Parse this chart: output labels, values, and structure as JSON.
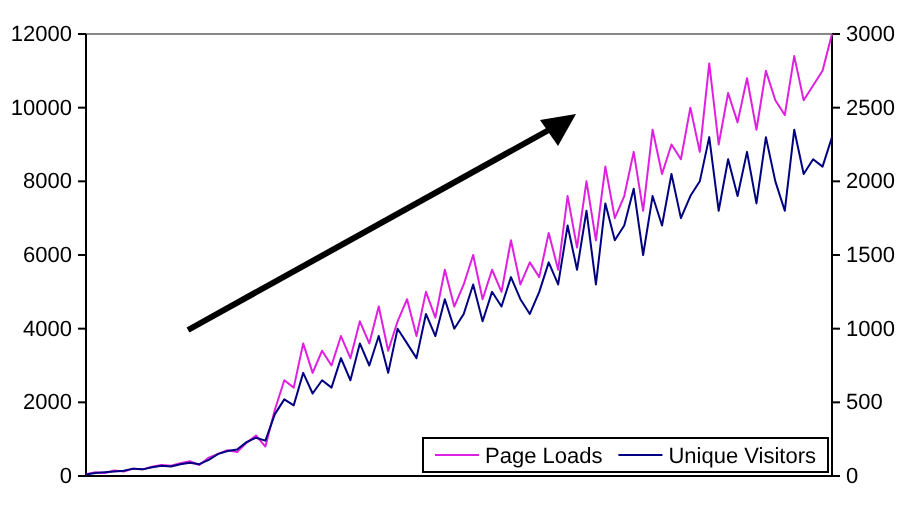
{
  "chart_data": {
    "type": "line",
    "categories": [
      null,
      null,
      null,
      null,
      null,
      null,
      null,
      null,
      null,
      null,
      null,
      null,
      null,
      null,
      null,
      null,
      null,
      null,
      null,
      null,
      null,
      null,
      null,
      null,
      null,
      null,
      null,
      null,
      null,
      null,
      null,
      null,
      null,
      null,
      null,
      null,
      null,
      null,
      null,
      null,
      null,
      null,
      null,
      null,
      null,
      null,
      null,
      null,
      null,
      null,
      null,
      null,
      null,
      null,
      null,
      null,
      null,
      null,
      null,
      null,
      null,
      null,
      null,
      null,
      null,
      null,
      null,
      null,
      null,
      null,
      null,
      null,
      null,
      null,
      null,
      null,
      null,
      null,
      null,
      null
    ],
    "series": [
      {
        "name": "Page Loads",
        "color": "#e020e0",
        "values": [
          50,
          100,
          80,
          150,
          120,
          200,
          180,
          250,
          300,
          280,
          350,
          400,
          300,
          500,
          600,
          700,
          650,
          900,
          1100,
          800,
          1800,
          2600,
          2400,
          3600,
          2800,
          3400,
          3000,
          3800,
          3200,
          4200,
          3600,
          4600,
          3400,
          4200,
          4800,
          3800,
          5000,
          4300,
          5600,
          4600,
          5200,
          6000,
          4800,
          5600,
          5000,
          6400,
          5200,
          5800,
          5400,
          6600,
          5600,
          7600,
          6200,
          8000,
          6400,
          8400,
          7000,
          7600,
          8800,
          7200,
          9400,
          8200,
          9000,
          8600,
          10000,
          8800,
          11200,
          9000,
          10400,
          9600,
          10800,
          9400,
          11000,
          10200,
          9800,
          11400,
          10200,
          10600,
          11000,
          12000
        ]
      },
      {
        "name": "Unique Visitors",
        "color": "#000080",
        "axis": "y2",
        "values": [
          10,
          20,
          25,
          30,
          35,
          50,
          45,
          60,
          70,
          65,
          80,
          90,
          80,
          110,
          150,
          170,
          180,
          230,
          260,
          240,
          420,
          520,
          480,
          700,
          560,
          650,
          600,
          800,
          650,
          900,
          750,
          950,
          700,
          1000,
          900,
          800,
          1100,
          950,
          1200,
          1000,
          1100,
          1300,
          1050,
          1250,
          1150,
          1350,
          1200,
          1100,
          1250,
          1450,
          1300,
          1700,
          1400,
          1800,
          1300,
          1850,
          1600,
          1700,
          1950,
          1500,
          1900,
          1700,
          2050,
          1750,
          1900,
          2000,
          2300,
          1800,
          2150,
          1900,
          2200,
          1850,
          2300,
          2000,
          1800,
          2350,
          2050,
          2150,
          2100,
          2300
        ]
      }
    ],
    "ylim": [
      0,
      12000
    ],
    "yticks": [
      0,
      2000,
      4000,
      6000,
      8000,
      10000,
      12000
    ],
    "y2lim": [
      0,
      3000
    ],
    "y2ticks": [
      0,
      500,
      1000,
      1500,
      2000,
      2500,
      3000
    ],
    "legend": "bottom right",
    "grid": false,
    "marker": "none",
    "line_style": "solid"
  }
}
